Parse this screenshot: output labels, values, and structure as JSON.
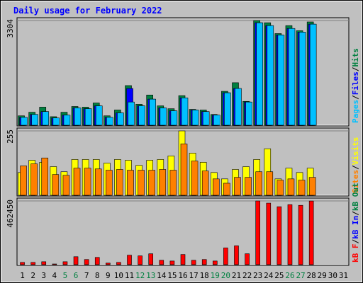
{
  "title": "Daily usage for February 2022",
  "legend_separator": "/",
  "weekend_categories": [
    5,
    6,
    12,
    13,
    19,
    20,
    26,
    27
  ],
  "weekend_color": "#008040",
  "chart_data": [
    {
      "type": "bar",
      "categories": [
        1,
        2,
        3,
        4,
        5,
        6,
        7,
        8,
        9,
        10,
        11,
        12,
        13,
        14,
        15,
        16,
        17,
        18,
        19,
        20,
        21,
        22,
        23,
        24,
        25,
        26,
        27,
        28,
        29,
        30,
        31
      ],
      "ylim": [
        0,
        3304
      ],
      "yticks": [
        3304
      ],
      "series": [
        {
          "name": "Hits",
          "color": "#008040",
          "values": [
            317,
            430,
            590,
            290,
            430,
            610,
            590,
            720,
            317,
            500,
            1265,
            680,
            970,
            630,
            540,
            950,
            520,
            500,
            360,
            1085,
            1355,
            770,
            3304,
            3235,
            2895,
            3145,
            2985,
            3260,
            null,
            null,
            null
          ]
        },
        {
          "name": "Files",
          "color": "#0000ff",
          "values": [
            270,
            360,
            450,
            250,
            340,
            565,
            540,
            630,
            270,
            410,
            1175,
            630,
            840,
            565,
            475,
            880,
            500,
            450,
            340,
            1040,
            1175,
            750,
            3235,
            3145,
            2850,
            3055,
            2940,
            3190,
            null,
            null,
            null
          ]
        },
        {
          "name": "Pages",
          "color": "#00c0ff",
          "values": [
            270,
            360,
            450,
            250,
            340,
            565,
            540,
            630,
            270,
            410,
            750,
            630,
            840,
            565,
            475,
            880,
            500,
            450,
            340,
            1040,
            1175,
            750,
            3235,
            3145,
            2850,
            3055,
            2940,
            3190,
            null,
            null,
            null
          ]
        }
      ]
    },
    {
      "type": "bar",
      "categories": [
        1,
        2,
        3,
        4,
        5,
        6,
        7,
        8,
        9,
        10,
        11,
        12,
        13,
        14,
        15,
        16,
        17,
        18,
        19,
        20,
        21,
        22,
        23,
        24,
        25,
        26,
        27,
        28,
        29,
        30,
        31
      ],
      "ylim": [
        0,
        255
      ],
      "yticks": [
        255
      ],
      "series": [
        {
          "name": "Visits",
          "color": "#ffff00",
          "values": [
            92,
            140,
            132,
            115,
            95,
            143,
            143,
            143,
            129,
            143,
            140,
            120,
            140,
            143,
            157,
            255,
            168,
            132,
            92,
            67,
            104,
            115,
            143,
            185,
            67,
            109,
            92,
            109,
            null,
            null,
            null
          ]
        },
        {
          "name": "Sites",
          "color": "#ff8000",
          "values": [
            118,
            126,
            149,
            84,
            81,
            109,
            109,
            106,
            101,
            104,
            101,
            101,
            101,
            104,
            101,
            204,
            137,
            98,
            67,
            50,
            73,
            73,
            95,
            95,
            62,
            67,
            62,
            73,
            null,
            null,
            null
          ]
        }
      ]
    },
    {
      "type": "bar",
      "categories": [
        1,
        2,
        3,
        4,
        5,
        6,
        7,
        8,
        9,
        10,
        11,
        12,
        13,
        14,
        15,
        16,
        17,
        18,
        19,
        20,
        21,
        22,
        23,
        24,
        25,
        26,
        27,
        28,
        29,
        30,
        31
      ],
      "ylim": [
        0,
        462450
      ],
      "yticks": [
        462450
      ],
      "series": [
        {
          "name": "kB F",
          "color": "#ff0000",
          "values": [
            21000,
            21000,
            26000,
            10000,
            26000,
            62000,
            42000,
            57000,
            16000,
            21000,
            73000,
            68000,
            83000,
            36000,
            31000,
            78000,
            36000,
            42000,
            31000,
            125000,
            140000,
            83000,
            462450,
            447000,
            421000,
            436000,
            431000,
            462000,
            null,
            null,
            null
          ]
        },
        {
          "name": "kB In",
          "color": "#0000ff",
          "values": [
            null,
            null,
            null,
            null,
            null,
            null,
            null,
            null,
            null,
            null,
            null,
            null,
            null,
            null,
            null,
            null,
            null,
            null,
            null,
            null,
            null,
            null,
            null,
            null,
            null,
            null,
            null,
            null,
            null,
            null,
            null
          ]
        },
        {
          "name": "kB Out",
          "color": "#008040",
          "values": [
            null,
            null,
            null,
            null,
            null,
            null,
            null,
            null,
            null,
            null,
            null,
            null,
            null,
            null,
            null,
            null,
            null,
            null,
            null,
            null,
            null,
            null,
            null,
            null,
            null,
            null,
            null,
            null,
            null,
            null,
            null
          ]
        }
      ]
    }
  ]
}
